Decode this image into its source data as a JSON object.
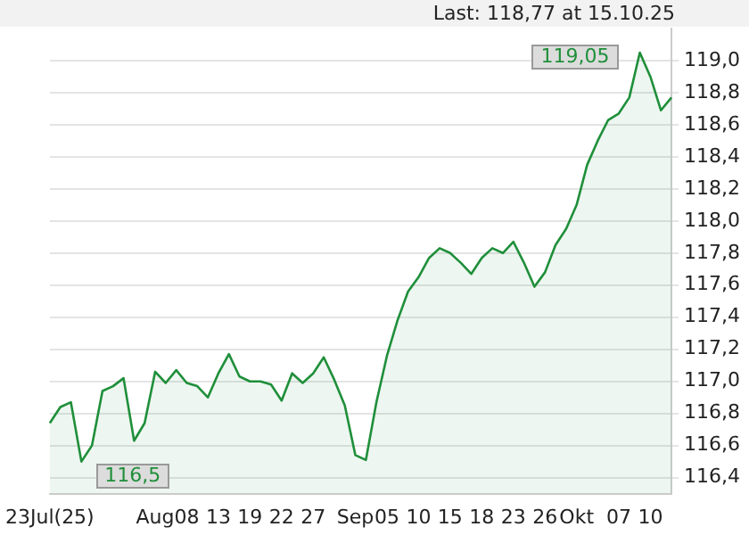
{
  "chart_data": {
    "type": "area",
    "categories": [
      "23Jul(25)",
      null,
      null,
      null,
      null,
      null,
      null,
      null,
      null,
      null,
      "Aug",
      null,
      null,
      "08",
      null,
      null,
      "13",
      null,
      null,
      "19",
      null,
      null,
      "22",
      null,
      null,
      "27",
      null,
      null,
      null,
      "Sep",
      null,
      null,
      "05",
      null,
      null,
      "10",
      null,
      null,
      "15",
      null,
      null,
      "18",
      null,
      null,
      "23",
      null,
      null,
      "26",
      null,
      null,
      "Okt",
      null,
      null,
      null,
      "07",
      null,
      null,
      "10",
      null,
      null
    ],
    "series": [
      {
        "color": "#1f8f3a",
        "values": [
          116.74,
          116.84,
          116.87,
          116.5,
          116.6,
          116.94,
          116.97,
          117.02,
          116.63,
          116.74,
          117.06,
          116.99,
          117.07,
          116.99,
          116.97,
          116.9,
          117.05,
          117.17,
          117.03,
          117.0,
          117.0,
          116.98,
          116.88,
          117.05,
          116.99,
          117.05,
          117.15,
          117.01,
          116.85,
          116.54,
          116.51,
          116.87,
          117.16,
          117.38,
          117.56,
          117.65,
          117.77,
          117.83,
          117.8,
          117.74,
          117.67,
          117.77,
          117.83,
          117.8,
          117.87,
          117.74,
          117.59,
          117.68,
          117.85,
          117.95,
          118.1,
          118.35,
          118.5,
          118.63,
          118.67,
          118.77,
          119.05,
          118.9,
          118.69,
          118.77
        ]
      }
    ],
    "ylim": [
      116.3,
      119.2
    ],
    "yticks": [
      {
        "value": 116.4,
        "label": "116,4"
      },
      {
        "value": 116.6,
        "label": "116,6"
      },
      {
        "value": 116.8,
        "label": "116,8"
      },
      {
        "value": 117.0,
        "label": "117,0"
      },
      {
        "value": 117.2,
        "label": "117,2"
      },
      {
        "value": 117.4,
        "label": "117,4"
      },
      {
        "value": 117.6,
        "label": "117,6"
      },
      {
        "value": 117.8,
        "label": "117,8"
      },
      {
        "value": 118.0,
        "label": "118,0"
      },
      {
        "value": 118.2,
        "label": "118,2"
      },
      {
        "value": 118.4,
        "label": "118,4"
      },
      {
        "value": 118.6,
        "label": "118,6"
      },
      {
        "value": 118.8,
        "label": "118,8"
      },
      {
        "value": 119.0,
        "label": "119,0"
      }
    ],
    "grid": "y",
    "annotations": [
      "Last: 118,77 at 15.10.25",
      "119,05",
      "116,5"
    ]
  }
}
